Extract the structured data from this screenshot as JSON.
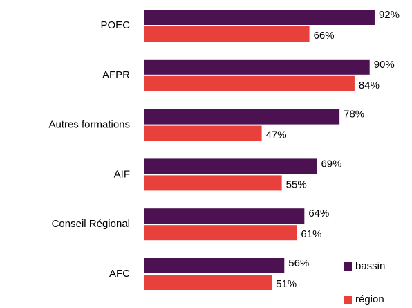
{
  "chart_data": {
    "type": "bar",
    "orientation": "horizontal",
    "categories": [
      "POEC",
      "AFPR",
      "Autres formations",
      "AIF",
      "Conseil Régional",
      "AFC"
    ],
    "series": [
      {
        "name": "bassin",
        "color": "#4b1150",
        "values": [
          92,
          90,
          78,
          69,
          64,
          56
        ],
        "value_labels": [
          "92%",
          "90%",
          "78%",
          "69%",
          "64%",
          "56%"
        ]
      },
      {
        "name": "région",
        "color": "#e8413c",
        "values": [
          66,
          84,
          47,
          55,
          61,
          51
        ],
        "value_labels": [
          "66%",
          "84%",
          "47%",
          "55%",
          "61%",
          "51%"
        ]
      }
    ],
    "xlim": [
      0,
      100
    ],
    "grid": false,
    "legend": "bottom-right"
  }
}
